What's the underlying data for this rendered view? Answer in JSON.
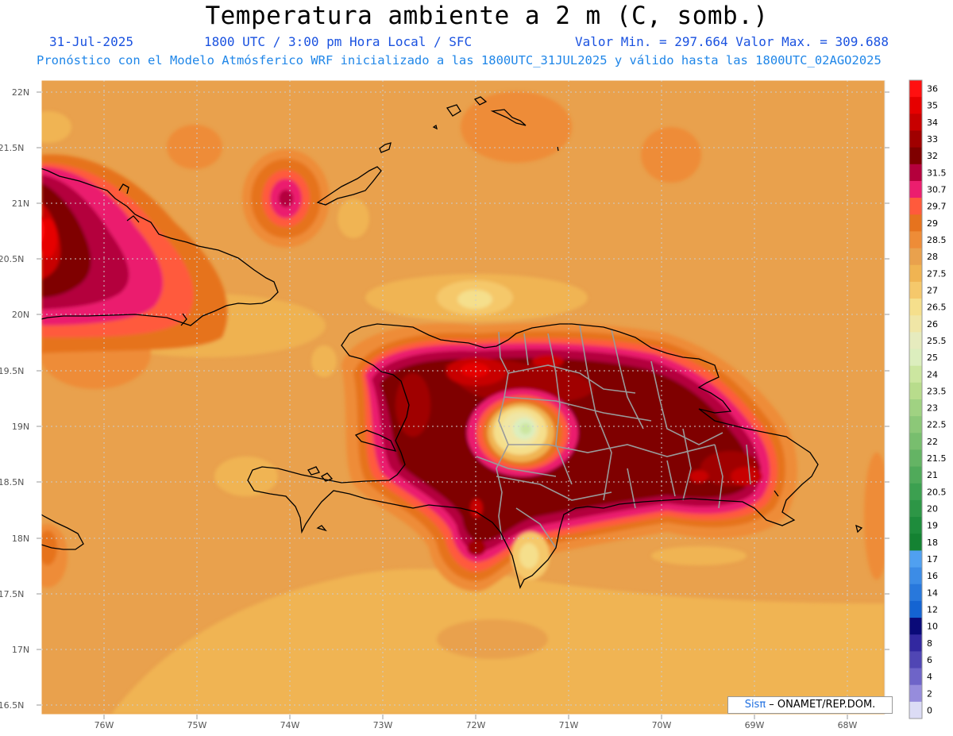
{
  "header": {
    "title": "Temperatura ambiente a 2 m (C, somb.)",
    "date": "31-Jul-2025",
    "time_info": "1800 UTC / 3:00 pm Hora Local / SFC",
    "min_max": "Valor Min. = 297.664  Valor Max. = 309.688",
    "forecast_info": "Pronóstico con el Modelo Atmósferico WRF inicializado a las 1800UTC_31JUL2025 y válido hasta las  1800UTC_02AGO2025"
  },
  "map": {
    "lat_labels": [
      "22N",
      "21.5N",
      "21N",
      "20.5N",
      "20N",
      "19.5N",
      "19N",
      "18.5N",
      "18N",
      "17.5N",
      "17N",
      "16.5N"
    ],
    "lon_labels": [
      "76W",
      "75W",
      "74W",
      "73W",
      "72W",
      "71W",
      "70W",
      "69W",
      "68W"
    ],
    "background_color": "#e9a14d"
  },
  "legend": {
    "levels": [
      {
        "label": "36",
        "color": "#ff1010"
      },
      {
        "label": "35",
        "color": "#e60000"
      },
      {
        "label": "34",
        "color": "#c80000"
      },
      {
        "label": "33",
        "color": "#a00000"
      },
      {
        "label": "32",
        "color": "#7f0000"
      },
      {
        "label": "31.5",
        "color": "#b4003c"
      },
      {
        "label": "30.7",
        "color": "#eb1e6e"
      },
      {
        "label": "29.7",
        "color": "#ff5a3c"
      },
      {
        "label": "29",
        "color": "#e6731e"
      },
      {
        "label": "28.5",
        "color": "#ee8c37"
      },
      {
        "label": "28",
        "color": "#e9a14d"
      },
      {
        "label": "27.5",
        "color": "#f0b452"
      },
      {
        "label": "27",
        "color": "#f5c86b"
      },
      {
        "label": "26.5",
        "color": "#f5df8c"
      },
      {
        "label": "26",
        "color": "#f0e6a6"
      },
      {
        "label": "25.5",
        "color": "#e6ebbe"
      },
      {
        "label": "25",
        "color": "#dceebe"
      },
      {
        "label": "24",
        "color": "#cce6a0"
      },
      {
        "label": "23.5",
        "color": "#b8dc8c"
      },
      {
        "label": "23",
        "color": "#a0d282"
      },
      {
        "label": "22.5",
        "color": "#8cc878"
      },
      {
        "label": "22",
        "color": "#78be6e"
      },
      {
        "label": "21.5",
        "color": "#64b464"
      },
      {
        "label": "21",
        "color": "#50aa5a"
      },
      {
        "label": "20.5",
        "color": "#3ca050"
      },
      {
        "label": "20",
        "color": "#2d9646"
      },
      {
        "label": "19",
        "color": "#1e8c3c"
      },
      {
        "label": "18",
        "color": "#148232"
      },
      {
        "label": "17",
        "color": "#50a0f0"
      },
      {
        "label": "16",
        "color": "#3c8ce6"
      },
      {
        "label": "14",
        "color": "#2878dc"
      },
      {
        "label": "12",
        "color": "#1464d2"
      },
      {
        "label": "10",
        "color": "#0a0a78"
      },
      {
        "label": "8",
        "color": "#3228a0"
      },
      {
        "label": "6",
        "color": "#5046b4"
      },
      {
        "label": "4",
        "color": "#6e64c8"
      },
      {
        "label": "2",
        "color": "#968cdc"
      },
      {
        "label": "0",
        "color": "#dcdcf5"
      }
    ]
  },
  "credit": {
    "brand": "Sisπ",
    "org": " – ONAMET/REP.DOM."
  }
}
